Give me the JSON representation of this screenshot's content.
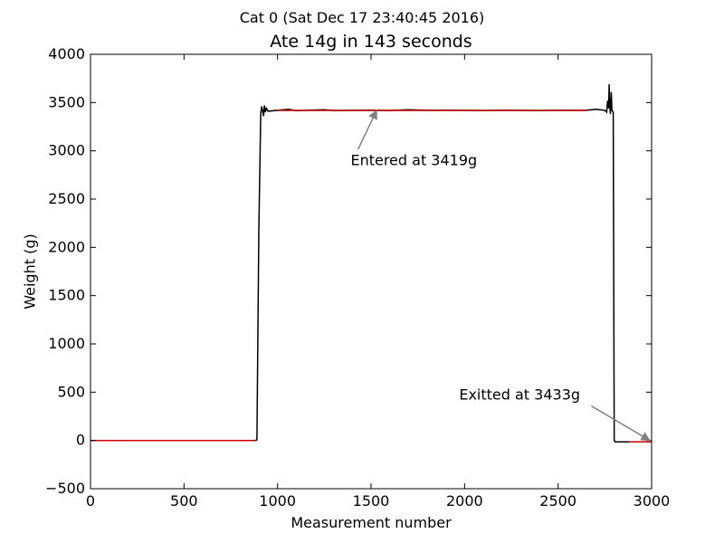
{
  "chart_data": {
    "type": "line",
    "suptitle": "Cat 0 (Sat Dec 17 23:40:45 2016)",
    "title": "Ate 14g in 143 seconds",
    "xlabel": "Measurement number",
    "ylabel": "Weight (g)",
    "xlim": [
      0,
      3000
    ],
    "ylim": [
      -500,
      4000
    ],
    "xticks": [
      0,
      500,
      1000,
      1500,
      2000,
      2500,
      3000
    ],
    "yticks": [
      -500,
      0,
      500,
      1000,
      1500,
      2000,
      2500,
      3000,
      3500,
      4000
    ],
    "xtick_labels": [
      "0",
      "500",
      "1000",
      "1500",
      "2000",
      "2500",
      "3000"
    ],
    "ytick_labels": [
      "−500",
      "0",
      "500",
      "1000",
      "1500",
      "2000",
      "2500",
      "3000",
      "3500",
      "4000"
    ],
    "grid": false,
    "series": [
      {
        "color": "#000000",
        "points": [
          [
            0,
            0
          ],
          [
            880,
            0
          ],
          [
            890,
            5
          ],
          [
            900,
            2180
          ],
          [
            910,
            3380
          ],
          [
            915,
            3460
          ],
          [
            920,
            3420
          ],
          [
            925,
            3360
          ],
          [
            930,
            3470
          ],
          [
            935,
            3400
          ],
          [
            940,
            3440
          ],
          [
            950,
            3410
          ],
          [
            1000,
            3420
          ],
          [
            1060,
            3430
          ],
          [
            1100,
            3415
          ],
          [
            1150,
            3420
          ],
          [
            1250,
            3425
          ],
          [
            1300,
            3418
          ],
          [
            1400,
            3420
          ],
          [
            1500,
            3422
          ],
          [
            1600,
            3418
          ],
          [
            1700,
            3425
          ],
          [
            1800,
            3420
          ],
          [
            1900,
            3422
          ],
          [
            2000,
            3420
          ],
          [
            2100,
            3418
          ],
          [
            2200,
            3422
          ],
          [
            2300,
            3420
          ],
          [
            2400,
            3418
          ],
          [
            2500,
            3422
          ],
          [
            2600,
            3420
          ],
          [
            2650,
            3420
          ],
          [
            2700,
            3430
          ],
          [
            2750,
            3420
          ],
          [
            2760,
            3400
          ],
          [
            2765,
            3520
          ],
          [
            2770,
            3440
          ],
          [
            2773,
            3690
          ],
          [
            2776,
            3470
          ],
          [
            2780,
            3380
          ],
          [
            2784,
            3610
          ],
          [
            2788,
            3420
          ],
          [
            2795,
            3400
          ],
          [
            2800,
            0
          ],
          [
            2805,
            -15
          ],
          [
            3000,
            -15
          ]
        ]
      },
      {
        "color": "#cc0000",
        "points": [
          [
            0,
            0
          ],
          [
            880,
            0
          ]
        ]
      },
      {
        "color": "#cc0000",
        "points": [
          [
            1000,
            3419
          ],
          [
            2650,
            3419
          ]
        ]
      },
      {
        "color": "#cc0000",
        "points": [
          [
            2880,
            -14
          ],
          [
            3000,
            -14
          ]
        ]
      }
    ],
    "annotations": [
      {
        "text": "Entered at 3419g",
        "xy": [
          1530,
          3419
        ],
        "xytext": [
          1420,
          2900
        ]
      },
      {
        "text": "Exitted at 3433g",
        "xy": [
          3000,
          0
        ],
        "xytext": [
          2000,
          470
        ]
      }
    ]
  }
}
